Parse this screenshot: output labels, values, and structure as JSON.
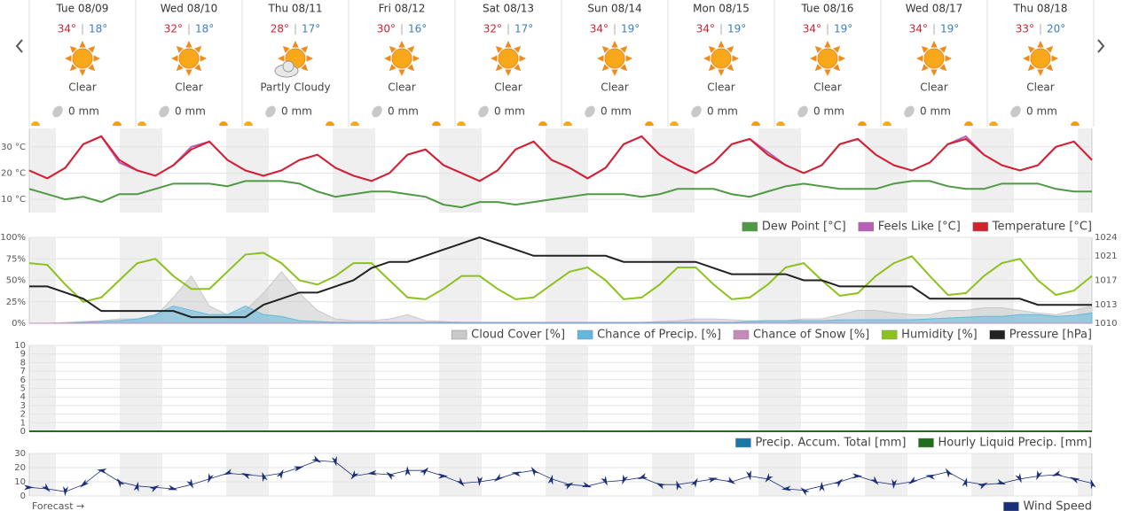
{
  "days": [
    {
      "day": "Tue 08/09",
      "high": "34°",
      "low": "18°",
      "condition": "Clear",
      "precip": "0 mm"
    },
    {
      "day": "Wed 08/10",
      "high": "32°",
      "low": "18°",
      "condition": "Clear",
      "precip": "0 mm"
    },
    {
      "day": "Thu 08/11",
      "high": "28°",
      "low": "17°",
      "condition": "Partly Cloudy",
      "precip": "0 mm"
    },
    {
      "day": "Fri 08/12",
      "high": "30°",
      "low": "16°",
      "condition": "Clear",
      "precip": "0 mm"
    },
    {
      "day": "Sat 08/13",
      "high": "32°",
      "low": "17°",
      "condition": "Clear",
      "precip": "0 mm"
    },
    {
      "day": "Sun 08/14",
      "high": "34°",
      "low": "19°",
      "condition": "Clear",
      "precip": "0 mm"
    },
    {
      "day": "Mon 08/15",
      "high": "34°",
      "low": "19°",
      "condition": "Clear",
      "precip": "0 mm"
    },
    {
      "day": "Tue 08/16",
      "high": "34°",
      "low": "19°",
      "condition": "Clear",
      "precip": "0 mm"
    },
    {
      "day": "Wed 08/17",
      "high": "34°",
      "low": "19°",
      "condition": "Clear",
      "precip": "0 mm"
    },
    {
      "day": "Thu 08/18",
      "high": "33°",
      "low": "20°",
      "condition": "Clear",
      "precip": "0 mm"
    }
  ],
  "chart_data": [
    {
      "type": "line",
      "ylim": [
        5,
        37
      ],
      "yticks": [
        {
          "value": 10,
          "label": "10 °C"
        },
        {
          "value": 20,
          "label": "20 °C"
        },
        {
          "value": 30,
          "label": "30 °C"
        }
      ],
      "series": [
        {
          "name": "Dew Point [°C]",
          "color": "#4e9a43",
          "values": [
            14,
            12,
            10,
            11,
            9,
            12,
            12,
            14,
            16,
            16,
            16,
            15,
            17,
            17,
            17,
            16,
            13,
            11,
            12,
            13,
            13,
            12,
            11,
            8,
            7,
            9,
            9,
            8,
            9,
            10,
            11,
            12,
            12,
            12,
            11,
            12,
            14,
            14,
            14,
            12,
            11,
            13,
            15,
            16,
            15,
            14,
            14,
            14,
            16,
            17,
            17,
            15,
            14,
            14,
            16,
            16,
            16,
            14,
            13,
            13
          ]
        },
        {
          "name": "Feels Like [°C]",
          "color": "#b55fb5",
          "values": [
            21,
            18,
            22,
            31,
            34,
            24,
            21,
            19,
            23,
            30,
            32,
            25,
            21,
            19,
            21,
            25,
            27,
            22,
            19,
            17,
            20,
            27,
            29,
            23,
            20,
            17,
            21,
            29,
            32,
            25,
            22,
            18,
            22,
            31,
            34,
            27,
            23,
            20,
            24,
            31,
            33,
            28,
            23,
            20,
            23,
            31,
            33,
            27,
            23,
            21,
            24,
            31,
            34,
            27,
            23,
            21,
            23,
            30,
            32,
            25
          ]
        },
        {
          "name": "Temperature [°C]",
          "color": "#d4202f",
          "values": [
            21,
            18,
            22,
            31,
            34,
            25,
            21,
            19,
            23,
            29,
            32,
            25,
            21,
            19,
            21,
            25,
            27,
            22,
            19,
            17,
            20,
            27,
            29,
            23,
            20,
            17,
            21,
            29,
            32,
            25,
            22,
            18,
            22,
            31,
            34,
            27,
            23,
            20,
            24,
            31,
            33,
            27,
            23,
            20,
            23,
            31,
            33,
            27,
            23,
            21,
            24,
            31,
            33,
            27,
            23,
            21,
            23,
            30,
            32,
            25
          ]
        }
      ]
    },
    {
      "type": "line",
      "ylim": [
        0,
        100
      ],
      "yticks": [
        {
          "value": 0,
          "label": "0%"
        },
        {
          "value": 25,
          "label": "25%"
        },
        {
          "value": 50,
          "label": "50%"
        },
        {
          "value": 75,
          "label": "75%"
        },
        {
          "value": 100,
          "label": "100%"
        }
      ],
      "y2lim": [
        1010,
        1024
      ],
      "y2ticks": [
        1010,
        1013,
        1017,
        1021,
        1024
      ],
      "series": [
        {
          "name": "Cloud Cover [%]",
          "color": "#c9c9c9",
          "style": "area",
          "values": [
            0,
            0,
            1,
            2,
            3,
            5,
            5,
            8,
            30,
            55,
            20,
            10,
            15,
            35,
            60,
            35,
            15,
            5,
            3,
            3,
            5,
            10,
            3,
            2,
            1,
            1,
            1,
            1,
            1,
            1,
            1,
            1,
            1,
            1,
            1,
            2,
            3,
            5,
            5,
            4,
            3,
            3,
            3,
            5,
            5,
            10,
            15,
            15,
            12,
            10,
            10,
            15,
            15,
            18,
            18,
            15,
            12,
            10,
            15,
            20
          ]
        },
        {
          "name": "Chance of Precip. [%]",
          "color": "#62b9dd",
          "style": "area",
          "values": [
            0,
            0,
            0,
            1,
            2,
            3,
            5,
            10,
            20,
            15,
            10,
            10,
            20,
            10,
            8,
            3,
            2,
            1,
            1,
            1,
            1,
            1,
            1,
            1,
            1,
            1,
            1,
            1,
            1,
            1,
            1,
            1,
            1,
            1,
            1,
            1,
            1,
            1,
            1,
            1,
            2,
            3,
            3,
            3,
            3,
            4,
            4,
            4,
            4,
            4,
            5,
            6,
            7,
            8,
            8,
            10,
            10,
            8,
            9,
            12
          ]
        },
        {
          "name": "Chance of Snow [%]",
          "color": "#c58ab8",
          "style": "area",
          "values": [
            0,
            0,
            0,
            0,
            0,
            0,
            0,
            0,
            0,
            0,
            0,
            0,
            0,
            0,
            0,
            0,
            0,
            0,
            0,
            0,
            0,
            0,
            0,
            0,
            0,
            0,
            0,
            0,
            0,
            0,
            0,
            0,
            0,
            0,
            0,
            0,
            0,
            0,
            0,
            0,
            0,
            0,
            0,
            0,
            0,
            0,
            0,
            0,
            0,
            0,
            0,
            0,
            0,
            0,
            0,
            0,
            0,
            0,
            0,
            0
          ]
        },
        {
          "name": "Humidity [%]",
          "color": "#8cc21e",
          "values": [
            70,
            68,
            45,
            25,
            30,
            50,
            70,
            75,
            55,
            40,
            40,
            60,
            80,
            82,
            70,
            50,
            45,
            55,
            70,
            70,
            50,
            30,
            28,
            40,
            55,
            55,
            40,
            28,
            30,
            45,
            60,
            65,
            50,
            28,
            30,
            45,
            65,
            65,
            45,
            28,
            30,
            45,
            65,
            70,
            50,
            32,
            35,
            55,
            70,
            78,
            55,
            33,
            35,
            55,
            70,
            75,
            50,
            33,
            38,
            55
          ]
        },
        {
          "name": "Pressure [hPa]",
          "color": "#222222",
          "axis": "y2",
          "values": [
            1016,
            1016,
            1015,
            1014,
            1012,
            1012,
            1012,
            1012,
            1012,
            1011,
            1011,
            1011,
            1011,
            1013,
            1014,
            1015,
            1015,
            1016,
            1017,
            1019,
            1020,
            1020,
            1021,
            1022,
            1023,
            1024,
            1023,
            1022,
            1021,
            1021,
            1021,
            1021,
            1021,
            1020,
            1020,
            1020,
            1020,
            1020,
            1019,
            1018,
            1018,
            1018,
            1018,
            1017,
            1017,
            1016,
            1016,
            1016,
            1016,
            1016,
            1014,
            1014,
            1014,
            1014,
            1014,
            1014,
            1013,
            1013,
            1013,
            1013
          ]
        }
      ]
    },
    {
      "type": "line",
      "ylim": [
        0,
        10
      ],
      "yticks": [
        0,
        1,
        2,
        3,
        4,
        5,
        6,
        7,
        8,
        9,
        10
      ],
      "series": [
        {
          "name": "Precip. Accum. Total [mm]",
          "color": "#1a78a8",
          "values": [
            0,
            0,
            0,
            0,
            0,
            0,
            0,
            0,
            0,
            0
          ]
        },
        {
          "name": "Hourly Liquid Precip. [mm]",
          "color": "#1e6e1e",
          "values": [
            0,
            0,
            0,
            0,
            0,
            0,
            0,
            0,
            0,
            0
          ]
        }
      ]
    },
    {
      "type": "line",
      "ylim": [
        0,
        30
      ],
      "yticks": [
        0,
        10,
        20,
        30
      ],
      "annotation": "Forecast →",
      "markers": true,
      "series": [
        {
          "name": "Wind Speed",
          "color": "#1b2f78",
          "values": [
            6,
            5,
            3,
            8,
            18,
            10,
            7,
            6,
            5,
            8,
            12,
            16,
            15,
            14,
            16,
            20,
            25,
            24,
            14,
            16,
            15,
            18,
            18,
            14,
            9,
            10,
            12,
            16,
            18,
            12,
            8,
            7,
            10,
            11,
            13,
            8,
            8,
            10,
            12,
            10,
            14,
            12,
            5,
            4,
            7,
            10,
            14,
            10,
            8,
            10,
            14,
            17,
            10,
            8,
            9,
            12,
            14,
            15,
            12,
            9
          ]
        }
      ]
    }
  ]
}
